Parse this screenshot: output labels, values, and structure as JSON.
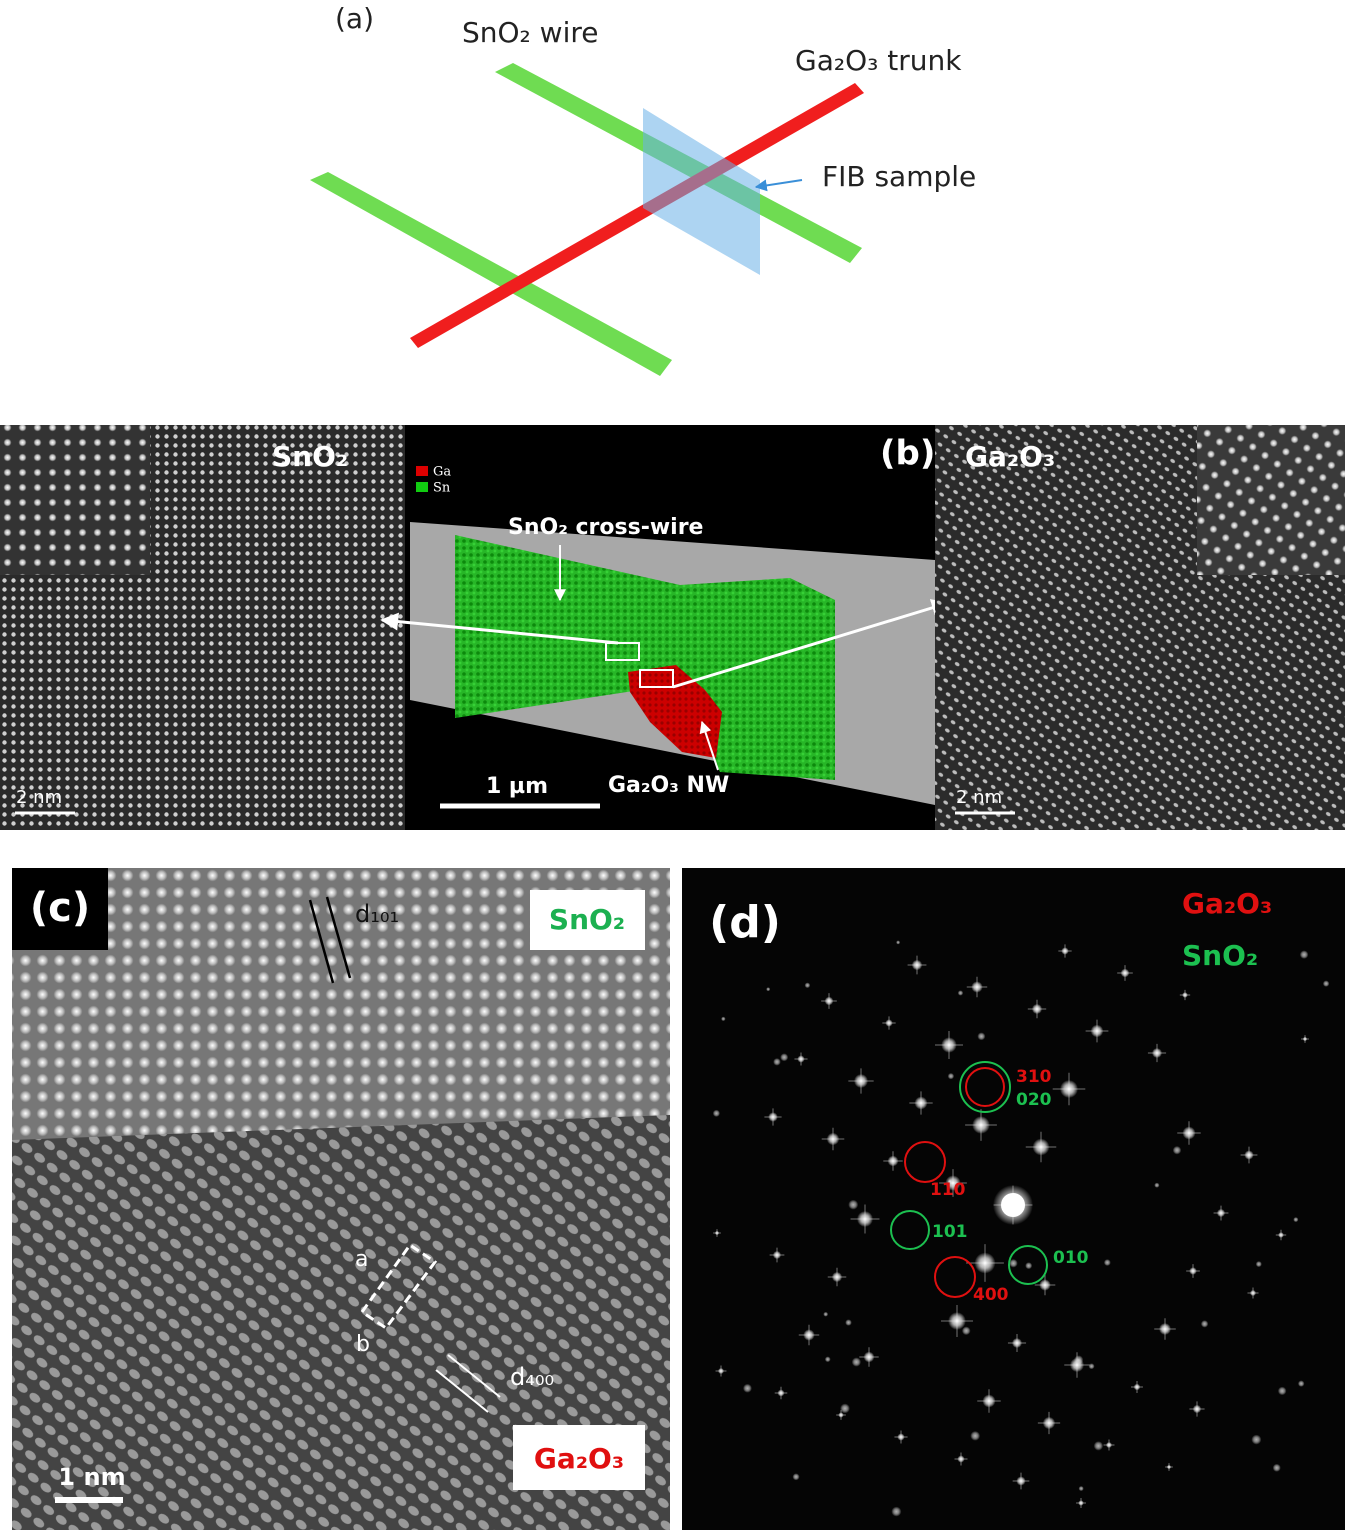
{
  "panel_a": {
    "label": "(a)",
    "sno2_wire": "SnO₂ wire",
    "ga2o3_trunk": "Ga₂O₃ trunk",
    "fib_sample": "FIB sample"
  },
  "panel_b": {
    "label": "(b)",
    "left": {
      "phase": "SnO₂",
      "scale_bar": "2 nm"
    },
    "center": {
      "legend": [
        "Ga",
        "Sn"
      ],
      "cross_wire": "SnO₂ cross-wire",
      "nanowire": "Ga₂O₃ NW",
      "scale_bar": "1 µm"
    },
    "right": {
      "phase": "Ga₂O₃",
      "scale_bar": "2 nm"
    }
  },
  "panel_c": {
    "label": "(c)",
    "top_phase": "SnO₂",
    "d_top": "d₁₀₁",
    "corner_a": "a",
    "corner_b": "b",
    "d_bottom": "d₄₀₀",
    "bottom_phase": "Ga₂O₃",
    "scale_bar": "1 nm"
  },
  "panel_d": {
    "label": "(d)",
    "legend": [
      "Ga₂O₃",
      "SnO₂"
    ],
    "spots": [
      "310",
      "020",
      "110",
      "101",
      "010",
      "400"
    ]
  }
}
